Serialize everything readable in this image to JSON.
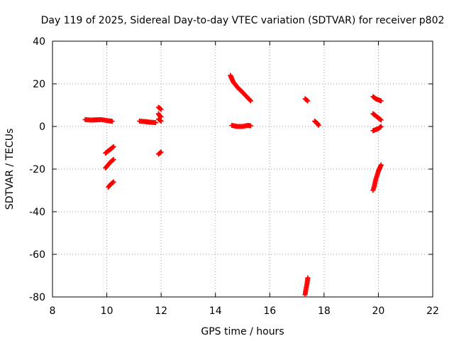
{
  "chart_data": {
    "type": "scatter",
    "title": "Day 119 of 2025, Sidereal Day-to-day VTEC variation (SDTVAR) for receiver p802",
    "xlabel": "GPS time / hours",
    "ylabel": "SDTVAR / TECUs",
    "xlim": [
      8,
      22
    ],
    "ylim": [
      -80,
      40
    ],
    "xticks": [
      8,
      10,
      12,
      14,
      16,
      18,
      20,
      22
    ],
    "yticks": [
      -80,
      -60,
      -40,
      -20,
      0,
      20,
      40
    ],
    "grid": true,
    "marker": "plus",
    "color": "#ff0000",
    "segments": [
      {
        "x": [
          9.2,
          9.4,
          9.6,
          9.8,
          10.0,
          10.2
        ],
        "y": [
          3.2,
          3.0,
          3.1,
          3.2,
          2.8,
          2.4
        ]
      },
      {
        "x": [
          9.95,
          10.05,
          10.15,
          10.25
        ],
        "y": [
          -12.5,
          -11.5,
          -10.5,
          -9.5
        ]
      },
      {
        "x": [
          9.95,
          10.05,
          10.15,
          10.25
        ],
        "y": [
          -19.5,
          -18.0,
          -16.5,
          -15.5
        ]
      },
      {
        "x": [
          10.05,
          10.15,
          10.25
        ],
        "y": [
          -28.5,
          -27.0,
          -26.0
        ]
      },
      {
        "x": [
          11.2,
          11.4,
          11.6,
          11.8
        ],
        "y": [
          2.5,
          2.3,
          2.0,
          1.8
        ]
      },
      {
        "x": [
          11.9,
          11.95,
          12.0
        ],
        "y": [
          9.0,
          8.5,
          8.0
        ]
      },
      {
        "x": [
          11.9,
          11.95,
          12.0
        ],
        "y": [
          6.0,
          5.0,
          4.5
        ]
      },
      {
        "x": [
          11.9,
          11.95,
          12.0
        ],
        "y": [
          3.5,
          3.0,
          2.5
        ]
      },
      {
        "x": [
          11.9,
          11.95,
          12.0
        ],
        "y": [
          -13.0,
          -12.5,
          -12.0
        ]
      },
      {
        "x": [
          14.55,
          14.65,
          14.8,
          15.0,
          15.15,
          15.3
        ],
        "y": [
          24.0,
          21.0,
          18.5,
          16.0,
          14.0,
          12.0
        ]
      },
      {
        "x": [
          14.6,
          14.8,
          15.0,
          15.2,
          15.3
        ],
        "y": [
          0.5,
          0.0,
          0.0,
          0.5,
          0.3
        ]
      },
      {
        "x": [
          17.3,
          17.4
        ],
        "y": [
          13.0,
          12.0
        ]
      },
      {
        "x": [
          17.65,
          17.75,
          17.8
        ],
        "y": [
          2.5,
          1.5,
          0.5
        ]
      },
      {
        "x": [
          17.3,
          17.33,
          17.37,
          17.4
        ],
        "y": [
          -79.0,
          -76.5,
          -74.0,
          -71.0
        ]
      },
      {
        "x": [
          19.8,
          19.9,
          20.0,
          20.1
        ],
        "y": [
          14.0,
          13.0,
          12.5,
          12.0
        ]
      },
      {
        "x": [
          19.8,
          19.9,
          20.0,
          20.1
        ],
        "y": [
          6.0,
          5.0,
          4.0,
          3.0
        ]
      },
      {
        "x": [
          19.8,
          19.9,
          20.0,
          20.1
        ],
        "y": [
          -2.0,
          -1.5,
          -1.0,
          0.0
        ]
      },
      {
        "x": [
          19.8,
          19.85,
          19.9,
          19.95,
          20.0,
          20.05,
          20.1
        ],
        "y": [
          -30.0,
          -28.0,
          -25.0,
          -23.0,
          -21.0,
          -19.5,
          -18.0
        ]
      }
    ]
  }
}
